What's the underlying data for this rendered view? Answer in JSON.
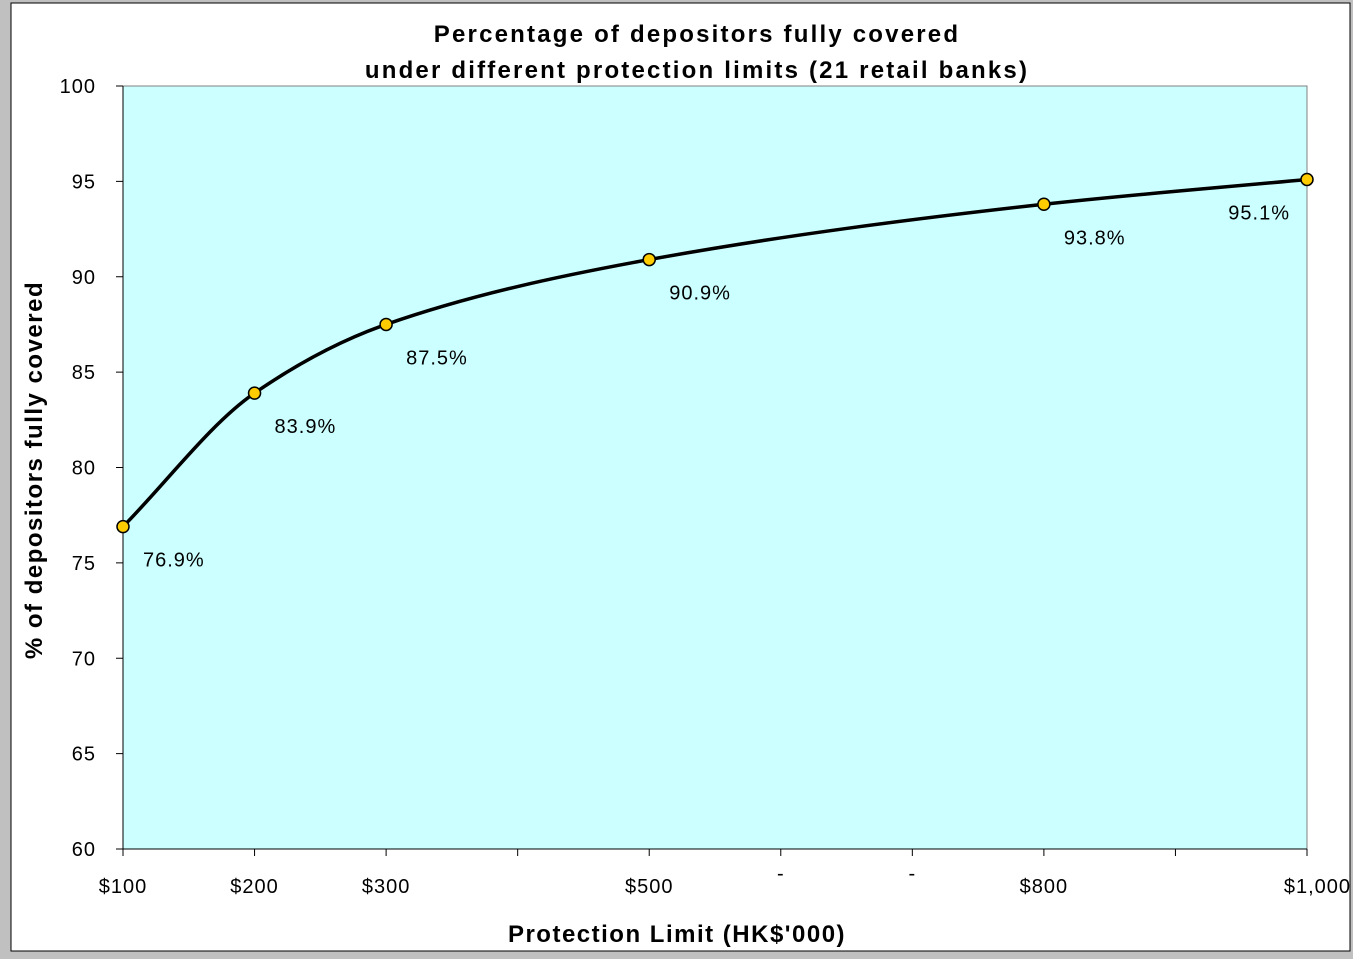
{
  "colors": {
    "background": "#c0c0c0",
    "plot_area": "#ccffff",
    "line": "#000000",
    "marker_fill": "#ffcc00",
    "marker_stroke": "#000000"
  },
  "chart_data": {
    "type": "line",
    "title": "Percentage of depositors fully covered",
    "subtitle": "under different protection limits (21 retail banks)",
    "xlabel": "Protection Limit (HK$'000)",
    "ylabel": "% of depositors fully covered",
    "x_ticks": [
      {
        "value": 100,
        "label": "$100"
      },
      {
        "value": 200,
        "label": "$200"
      },
      {
        "value": 300,
        "label": "$300"
      },
      {
        "value": 400,
        "label": ""
      },
      {
        "value": 500,
        "label": "$500"
      },
      {
        "value": 600,
        "label": "-"
      },
      {
        "value": 700,
        "label": "-"
      },
      {
        "value": 800,
        "label": "$800"
      },
      {
        "value": 900,
        "label": ""
      },
      {
        "value": 1000,
        "label": "$1,000"
      }
    ],
    "y_ticks": [
      60,
      65,
      70,
      75,
      80,
      85,
      90,
      95,
      100
    ],
    "xlim": [
      100,
      1000
    ],
    "ylim": [
      60,
      100
    ],
    "grid": false,
    "legend": "none",
    "series": [
      {
        "x": [
          100,
          200,
          300,
          500,
          800,
          1000
        ],
        "y": [
          76.9,
          83.9,
          87.5,
          90.9,
          93.8,
          95.1
        ],
        "labels": [
          "76.9%",
          "83.9%",
          "87.5%",
          "90.9%",
          "93.8%",
          "95.1%"
        ]
      }
    ]
  }
}
